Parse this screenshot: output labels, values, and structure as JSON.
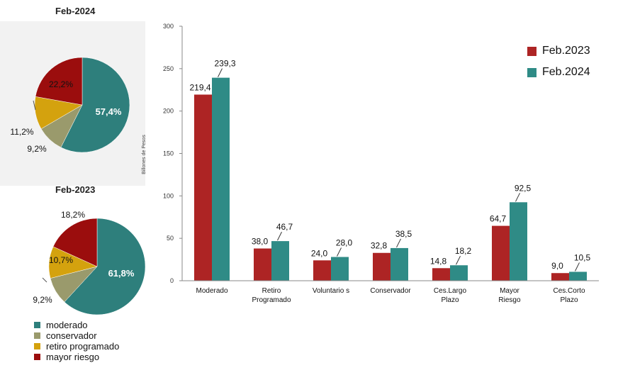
{
  "colors": {
    "moderado": "#2e7f7c",
    "conservador": "#9a9a6c",
    "retiro_programado": "#d4a20e",
    "mayor_riesgo": "#9b0d0d",
    "feb2023_bar": "#ad2424",
    "feb2024_bar": "#2f8b86"
  },
  "pies": [
    {
      "title": "Feb-2024",
      "slices": [
        {
          "key": "moderado",
          "value": 57.4,
          "label": "57,4%"
        },
        {
          "key": "conservador",
          "value": 9.2,
          "label": "9,2%"
        },
        {
          "key": "retiro_programado",
          "value": 11.2,
          "label": "11,2%"
        },
        {
          "key": "mayor_riesgo",
          "value": 22.2,
          "label": "22,2%"
        }
      ]
    },
    {
      "title": "Feb-2023",
      "slices": [
        {
          "key": "moderado",
          "value": 61.8,
          "label": "61,8%"
        },
        {
          "key": "conservador",
          "value": 9.2,
          "label": "9,2%"
        },
        {
          "key": "retiro_programado",
          "value": 10.7,
          "label": "10,7%"
        },
        {
          "key": "mayor_riesgo",
          "value": 18.2,
          "label": "18,2%"
        }
      ]
    }
  ],
  "pie_legend": [
    {
      "key": "moderado",
      "label": "moderado"
    },
    {
      "key": "conservador",
      "label": "conservador"
    },
    {
      "key": "retiro_programado",
      "label": "retiro programado"
    },
    {
      "key": "mayor_riesgo",
      "label": "mayor riesgo"
    }
  ],
  "chart_data": {
    "type": "bar",
    "categories": [
      "Moderado",
      "Retiro Programado",
      "Voluntario s",
      "Conservador",
      "Ces.Largo Plazo",
      "Mayor Riesgo",
      "Ces.Corto Plazo"
    ],
    "category_lines": [
      [
        "Moderado"
      ],
      [
        "Retiro",
        "Programado"
      ],
      [
        "Voluntario s"
      ],
      [
        "Conservador"
      ],
      [
        "Ces.Largo",
        "Plazo"
      ],
      [
        "Mayor",
        "Riesgo"
      ],
      [
        "Ces.Corto",
        "Plazo"
      ]
    ],
    "series": [
      {
        "name": "Feb.2023",
        "values": [
          219.4,
          38.0,
          24.0,
          32.8,
          14.8,
          64.7,
          9.0
        ],
        "labels": [
          "219,4",
          "38,0",
          "24,0",
          "32,8",
          "14,8",
          "64,7",
          "9,0"
        ]
      },
      {
        "name": "Feb.2024",
        "values": [
          239.3,
          46.7,
          28.0,
          38.5,
          18.2,
          92.5,
          10.5
        ],
        "labels": [
          "239,3",
          "46,7",
          "28,0",
          "38,5",
          "18,2",
          "92,5",
          "10,5"
        ]
      }
    ],
    "ylabel": "Billones de Pesos",
    "ylim": [
      0,
      300
    ],
    "yticks": [
      0,
      50,
      100,
      150,
      200,
      250,
      300
    ],
    "legend_position": "top-right",
    "grid": false
  }
}
